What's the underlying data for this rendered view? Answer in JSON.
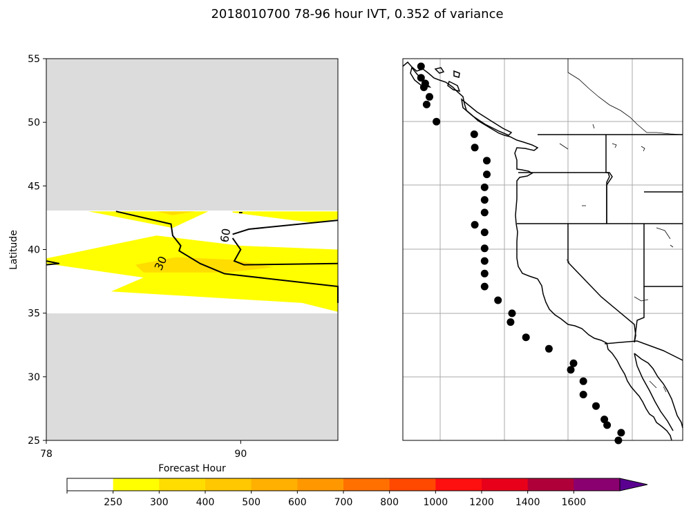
{
  "title": "2018010700 78-96 hour IVT, 0.352 of variance",
  "chart_data": [
    {
      "type": "heatmap",
      "panel": "left",
      "xlabel": "Forecast Hour",
      "ylabel": "Latitude",
      "xlim": [
        78,
        96
      ],
      "ylim": [
        25,
        55
      ],
      "x_ticks": [
        "78",
        "90"
      ],
      "y_ticks": [
        "25",
        "30",
        "35",
        "40",
        "45",
        "50",
        "55"
      ],
      "missing_color": "#dcdcdc",
      "data_lat_range": [
        35,
        43
      ],
      "fill_regions": [
        {
          "level": "250-300",
          "color": "#ffff00",
          "points": [
            [
              80.6,
              43
            ],
            [
              88.0,
              43
            ],
            [
              85.8,
              41.7
            ],
            [
              80.6,
              43
            ]
          ]
        },
        {
          "level": "250-300",
          "color": "#ffff00",
          "points": [
            [
              89.5,
              43
            ],
            [
              96,
              43
            ],
            [
              96,
              42.4
            ],
            [
              94.5,
              42.1
            ],
            [
              89.5,
              42.9
            ]
          ]
        },
        {
          "level": "250-300",
          "color": "#ffff00",
          "points": [
            [
              78,
              39.3
            ],
            [
              84.8,
              41.1
            ],
            [
              90,
              40.3
            ],
            [
              96,
              40
            ],
            [
              96,
              35.1
            ],
            [
              93.8,
              35.8
            ],
            [
              82,
              36.7
            ],
            [
              84,
              37.8
            ],
            [
              78,
              38.9
            ]
          ]
        },
        {
          "level": "300-400",
          "color": "#ffdd00",
          "points": [
            [
              84.8,
              43
            ],
            [
              87.2,
              43
            ],
            [
              85.8,
              42.7
            ]
          ]
        },
        {
          "level": "300-400",
          "color": "#ffdd00",
          "points": [
            [
              83.5,
              38.8
            ],
            [
              86,
              39.4
            ],
            [
              89.5,
              39.2
            ],
            [
              92,
              38.6
            ],
            [
              89.2,
              38.2
            ],
            [
              84,
              38.2
            ]
          ]
        }
      ],
      "contours": [
        {
          "label": "30",
          "points": [
            [
              82.3,
              43
            ],
            [
              85.7,
              42.0
            ],
            [
              85.8,
              41.1
            ],
            [
              86.3,
              40.3
            ],
            [
              86.2,
              39.9
            ],
            [
              87.5,
              38.9
            ],
            [
              89,
              38.1
            ],
            [
              96,
              37.1
            ],
            [
              97,
              36.5
            ],
            [
              97.4,
              35.8
            ]
          ]
        },
        {
          "label": "60",
          "points": [
            [
              89.5,
              41.2
            ],
            [
              90.5,
              41.6
            ],
            [
              96,
              42.3
            ]
          ]
        },
        {
          "label": "",
          "points": [
            [
              89.5,
              40.9
            ],
            [
              90,
              40.0
            ],
            [
              89.6,
              39.1
            ],
            [
              90.2,
              38.8
            ],
            [
              96,
              38.9
            ]
          ]
        },
        {
          "label": "",
          "points": [
            [
              89.9,
              42.9
            ],
            [
              90.1,
              42.9
            ]
          ]
        },
        {
          "label": "",
          "points": [
            [
              78,
              38.8
            ],
            [
              78.8,
              38.9
            ],
            [
              78,
              39.1
            ]
          ]
        }
      ],
      "contour_labels": [
        {
          "text": "30",
          "x": 85.1,
          "y": 38.9,
          "rotate": -65
        },
        {
          "text": "60",
          "x": 89.1,
          "y": 41.1,
          "rotate": -80
        }
      ]
    },
    {
      "type": "scatter",
      "panel": "right",
      "projection": "map",
      "marker_color": "#000000",
      "gridlines": true,
      "points": [
        [
          0.065,
          0.02
        ],
        [
          0.065,
          0.05
        ],
        [
          0.08,
          0.065
        ],
        [
          0.075,
          0.075
        ],
        [
          0.095,
          0.1
        ],
        [
          0.085,
          0.12
        ],
        [
          0.12,
          0.165
        ],
        [
          0.255,
          0.198
        ],
        [
          0.257,
          0.233
        ],
        [
          0.3,
          0.267
        ],
        [
          0.3,
          0.303
        ],
        [
          0.292,
          0.337
        ],
        [
          0.292,
          0.37
        ],
        [
          0.292,
          0.403
        ],
        [
          0.257,
          0.435
        ],
        [
          0.292,
          0.455
        ],
        [
          0.292,
          0.497
        ],
        [
          0.292,
          0.53
        ],
        [
          0.292,
          0.563
        ],
        [
          0.292,
          0.597
        ],
        [
          0.34,
          0.633
        ],
        [
          0.39,
          0.667
        ],
        [
          0.385,
          0.69
        ],
        [
          0.44,
          0.73
        ],
        [
          0.522,
          0.76
        ],
        [
          0.61,
          0.798
        ],
        [
          0.6,
          0.815
        ],
        [
          0.645,
          0.845
        ],
        [
          0.645,
          0.88
        ],
        [
          0.69,
          0.91
        ],
        [
          0.72,
          0.945
        ],
        [
          0.73,
          0.96
        ],
        [
          0.78,
          0.98
        ],
        [
          0.77,
          1.0
        ]
      ]
    }
  ],
  "colorbar": {
    "levels": [
      "250",
      "300",
      "400",
      "500",
      "600",
      "700",
      "800",
      "1000",
      "1200",
      "1400",
      "1600"
    ],
    "colors": [
      "#ffffff",
      "#ffff00",
      "#ffdd00",
      "#ffc800",
      "#ffb000",
      "#ff9800",
      "#ff7000",
      "#ff4800",
      "#ff1010",
      "#e8001a",
      "#b0003a",
      "#8a0070",
      "#5a0090"
    ],
    "extend": "max"
  }
}
